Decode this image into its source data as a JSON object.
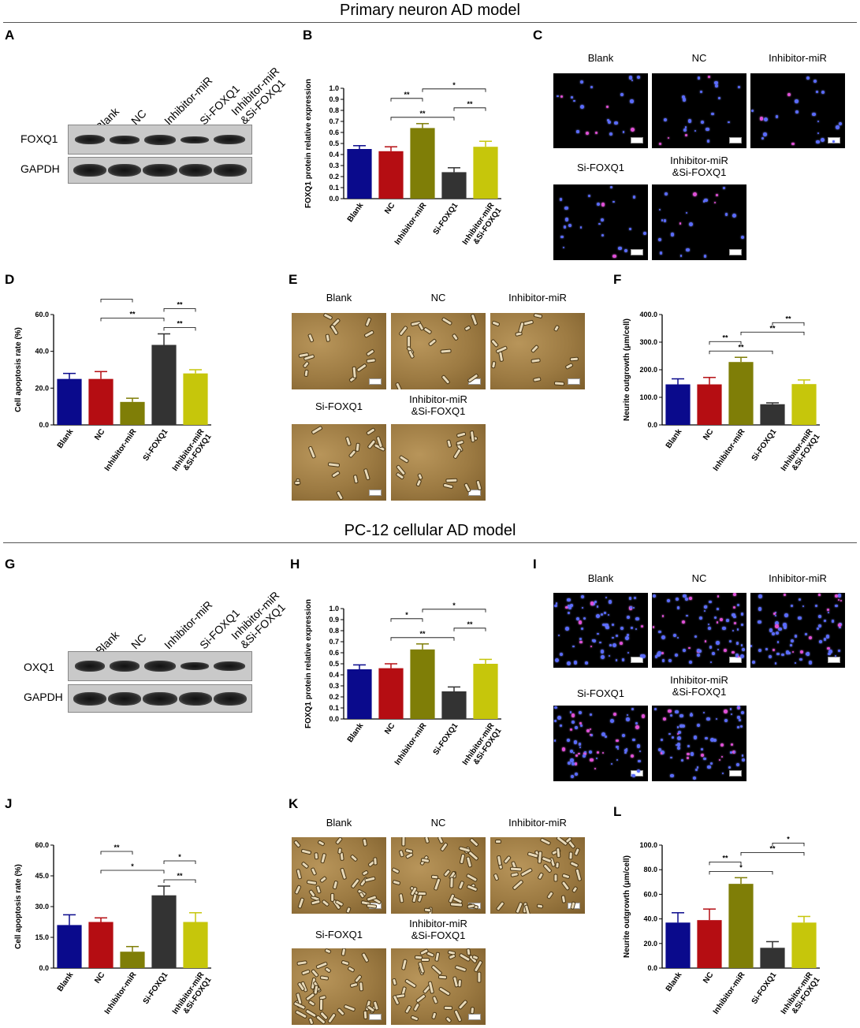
{
  "sections": {
    "top_title": "Primary neuron AD model",
    "bottom_title": "PC-12 cellular AD model"
  },
  "panel_labels": {
    "A": "A",
    "B": "B",
    "C": "C",
    "D": "D",
    "E": "E",
    "F": "F",
    "G": "G",
    "H": "H",
    "I": "I",
    "J": "J",
    "K": "K",
    "L": "L"
  },
  "western": {
    "lanes": [
      "Blank",
      "NC",
      "Inhibitor-miR",
      "Si-FOXQ1",
      "Inhibitor-miR\n&Si-FOXQ1"
    ],
    "top_rows": [
      "FOXQ1",
      "GAPDH"
    ],
    "bottom_rows": [
      "OXQ1",
      "GAPDH"
    ]
  },
  "micrographs": {
    "top_row_labels": [
      "Blank",
      "NC",
      "Inhibitor-miR"
    ],
    "bottom_row_labels": [
      "Si-FOXQ1",
      "Inhibitor-miR\n&Si-FOXQ1"
    ]
  },
  "colors": {
    "Blank": "#0a0a8c",
    "NC": "#b50d12",
    "Inhibitor-miR": "#7f7e07",
    "Si-FOXQ1": "#333333",
    "Inhibitor-miR&Si-FOXQ1": "#c6c60b"
  },
  "chart_data": [
    {
      "panel": "B",
      "type": "bar",
      "categories": [
        "Blank",
        "NC",
        "Inhibitor-miR",
        "Si-FOXQ1",
        "Inhibitor-miR\n&Si-FOXQ1"
      ],
      "values": [
        0.45,
        0.43,
        0.64,
        0.24,
        0.47
      ],
      "errors": [
        0.03,
        0.04,
        0.04,
        0.04,
        0.05
      ],
      "ylabel": "FOXQ1 protein relative expression",
      "ylim": [
        0,
        1.0
      ],
      "yticks": [
        "0.0",
        "0.1",
        "0.2",
        "0.3",
        "0.4",
        "0.5",
        "0.6",
        "0.7",
        "0.8",
        "0.9",
        "1.0"
      ],
      "significance": [
        {
          "from": 1,
          "to": 3,
          "label": "**"
        },
        {
          "from": 3,
          "to": 4,
          "label": "**"
        },
        {
          "from": 1,
          "to": 2,
          "label": "**"
        },
        {
          "from": 2,
          "to": 4,
          "label": "*"
        }
      ]
    },
    {
      "panel": "D",
      "type": "bar",
      "categories": [
        "Blank",
        "NC",
        "Inhibitor-miR",
        "Si-FOXQ1",
        "Inhibitor-miR\n&Si-FOXQ1"
      ],
      "values": [
        25,
        25,
        12.5,
        43.5,
        28
      ],
      "errors": [
        3,
        4,
        2,
        6,
        2
      ],
      "ylabel": "Cell apoptosis rate (%)",
      "ylim": [
        0,
        60
      ],
      "yticks": [
        "0.0",
        "20.0",
        "40.0",
        "60.0"
      ],
      "significance": [
        {
          "from": 3,
          "to": 4,
          "label": "**"
        },
        {
          "from": 1,
          "to": 3,
          "label": "**"
        },
        {
          "from": 3,
          "to": 4,
          "label": "**"
        },
        {
          "from": 1,
          "to": 2,
          "label": "*"
        }
      ]
    },
    {
      "panel": "F",
      "type": "bar",
      "categories": [
        "Blank",
        "NC",
        "Inhibitor-miR",
        "Si-FOXQ1",
        "Inhibitor-miR\n&Si-FOXQ1"
      ],
      "values": [
        147,
        147,
        228,
        75,
        148
      ],
      "errors": [
        20,
        25,
        17,
        5,
        15
      ],
      "ylabel": "Neurite outgrowth (μm/cell)",
      "ylim": [
        0,
        400
      ],
      "yticks": [
        "0.0",
        "100.0",
        "200.0",
        "300.0",
        "400.0"
      ],
      "significance": [
        {
          "from": 1,
          "to": 3,
          "label": "**"
        },
        {
          "from": 1,
          "to": 2,
          "label": "**"
        },
        {
          "from": 2,
          "to": 4,
          "label": "**"
        },
        {
          "from": 3,
          "to": 4,
          "label": "**"
        }
      ]
    },
    {
      "panel": "H",
      "type": "bar",
      "categories": [
        "Blank",
        "NC",
        "Inhibitor-miR",
        "Si-FOXQ1",
        "Inhibitor-miR\n&Si-FOXQ1"
      ],
      "values": [
        0.45,
        0.46,
        0.63,
        0.25,
        0.5
      ],
      "errors": [
        0.04,
        0.04,
        0.05,
        0.04,
        0.04
      ],
      "ylabel": "FOXQ1 protein relative expression",
      "ylim": [
        0,
        1.0
      ],
      "yticks": [
        "0.0",
        "0.1",
        "0.2",
        "0.3",
        "0.4",
        "0.5",
        "0.6",
        "0.7",
        "0.8",
        "0.9",
        "1.0"
      ],
      "significance": [
        {
          "from": 1,
          "to": 3,
          "label": "**"
        },
        {
          "from": 3,
          "to": 4,
          "label": "**"
        },
        {
          "from": 1,
          "to": 2,
          "label": "*"
        },
        {
          "from": 2,
          "to": 4,
          "label": "*"
        }
      ]
    },
    {
      "panel": "J",
      "type": "bar",
      "categories": [
        "Blank",
        "NC",
        "Inhibitor-miR",
        "Si-FOXQ1",
        "Inhibitor-miR\n&Si-FOXQ1"
      ],
      "values": [
        21,
        22.5,
        8,
        35.5,
        22.5
      ],
      "errors": [
        5,
        2,
        2.5,
        4.5,
        4.5
      ],
      "ylabel": "Cell apoptosis rate (%)",
      "ylim": [
        0,
        60
      ],
      "yticks": [
        "0.0",
        "15.0",
        "30.0",
        "45.0",
        "60.0"
      ],
      "significance": [
        {
          "from": 3,
          "to": 4,
          "label": "**"
        },
        {
          "from": 1,
          "to": 3,
          "label": "*"
        },
        {
          "from": 3,
          "to": 4,
          "label": "*"
        },
        {
          "from": 1,
          "to": 2,
          "label": "**"
        }
      ]
    },
    {
      "panel": "L",
      "type": "bar",
      "categories": [
        "Blank",
        "NC",
        "Inhibitor-miR",
        "Si-FOXQ1",
        "Inhibitor-miR\n&Si-FOXQ1"
      ],
      "values": [
        37,
        39,
        68.5,
        16.5,
        37
      ],
      "errors": [
        8,
        9,
        5,
        5,
        5
      ],
      "ylabel": "Neurite outgrowth (μm/cell)",
      "ylim": [
        0,
        100
      ],
      "yticks": [
        "0.0",
        "20.0",
        "40.0",
        "60.0",
        "80.0",
        "100.0"
      ],
      "significance": [
        {
          "from": 1,
          "to": 3,
          "label": "*"
        },
        {
          "from": 1,
          "to": 2,
          "label": "**"
        },
        {
          "from": 2,
          "to": 4,
          "label": "**"
        },
        {
          "from": 3,
          "to": 4,
          "label": "*"
        }
      ]
    }
  ]
}
